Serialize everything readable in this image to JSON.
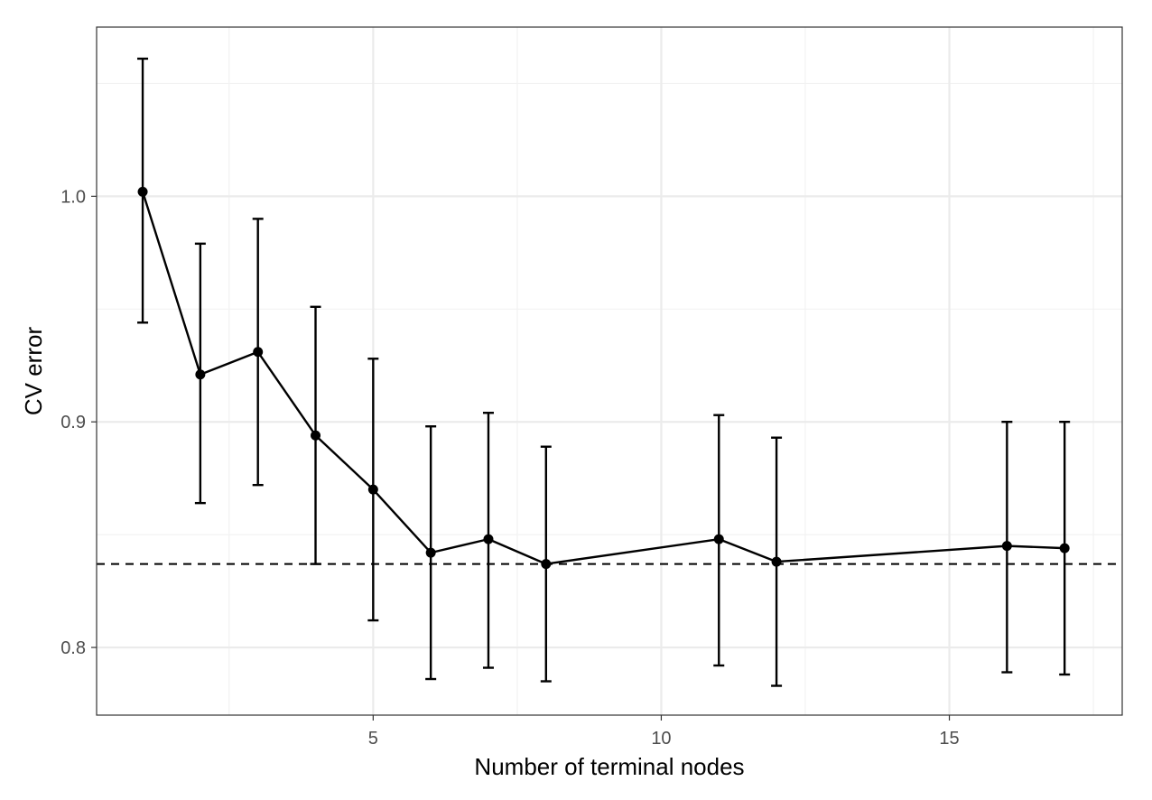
{
  "chart_data": {
    "type": "line",
    "title": "",
    "xlabel": "Number of terminal nodes",
    "ylabel": "CV error",
    "xlim": [
      0.2,
      18.0
    ],
    "ylim": [
      0.77,
      1.075
    ],
    "x_ticks": [
      5,
      10,
      15
    ],
    "x_tick_labels": [
      "5",
      "10",
      "15"
    ],
    "x_minor_ticks": [
      2.5,
      7.5,
      12.5,
      17.5
    ],
    "y_ticks": [
      0.8,
      0.9,
      1.0
    ],
    "y_tick_labels": [
      "0.8",
      "0.9",
      "1.0"
    ],
    "y_minor_ticks": [
      0.85,
      0.95,
      1.05
    ],
    "grid": true,
    "reference_line": {
      "y": 0.837,
      "style": "dashed"
    },
    "series": [
      {
        "points": [
          {
            "x": 1,
            "y": 1.002,
            "ymin": 0.944,
            "ymax": 1.061
          },
          {
            "x": 2,
            "y": 0.921,
            "ymin": 0.864,
            "ymax": 0.979
          },
          {
            "x": 3,
            "y": 0.931,
            "ymin": 0.872,
            "ymax": 0.99
          },
          {
            "x": 4,
            "y": 0.894,
            "ymin": 0.837,
            "ymax": 0.951
          },
          {
            "x": 5,
            "y": 0.87,
            "ymin": 0.812,
            "ymax": 0.928
          },
          {
            "x": 6,
            "y": 0.842,
            "ymin": 0.786,
            "ymax": 0.898
          },
          {
            "x": 7,
            "y": 0.848,
            "ymin": 0.791,
            "ymax": 0.904
          },
          {
            "x": 8,
            "y": 0.837,
            "ymin": 0.785,
            "ymax": 0.889
          },
          {
            "x": 11,
            "y": 0.848,
            "ymin": 0.792,
            "ymax": 0.903
          },
          {
            "x": 12,
            "y": 0.838,
            "ymin": 0.783,
            "ymax": 0.893
          },
          {
            "x": 16,
            "y": 0.845,
            "ymin": 0.789,
            "ymax": 0.9
          },
          {
            "x": 17,
            "y": 0.844,
            "ymin": 0.788,
            "ymax": 0.9
          }
        ]
      }
    ],
    "colors": {
      "line": "#000000",
      "grid_major": "#ebebeb",
      "grid_minor": "#f2f2f2",
      "panel_border": "#333333",
      "tick_text": "#4d4d4d"
    }
  }
}
